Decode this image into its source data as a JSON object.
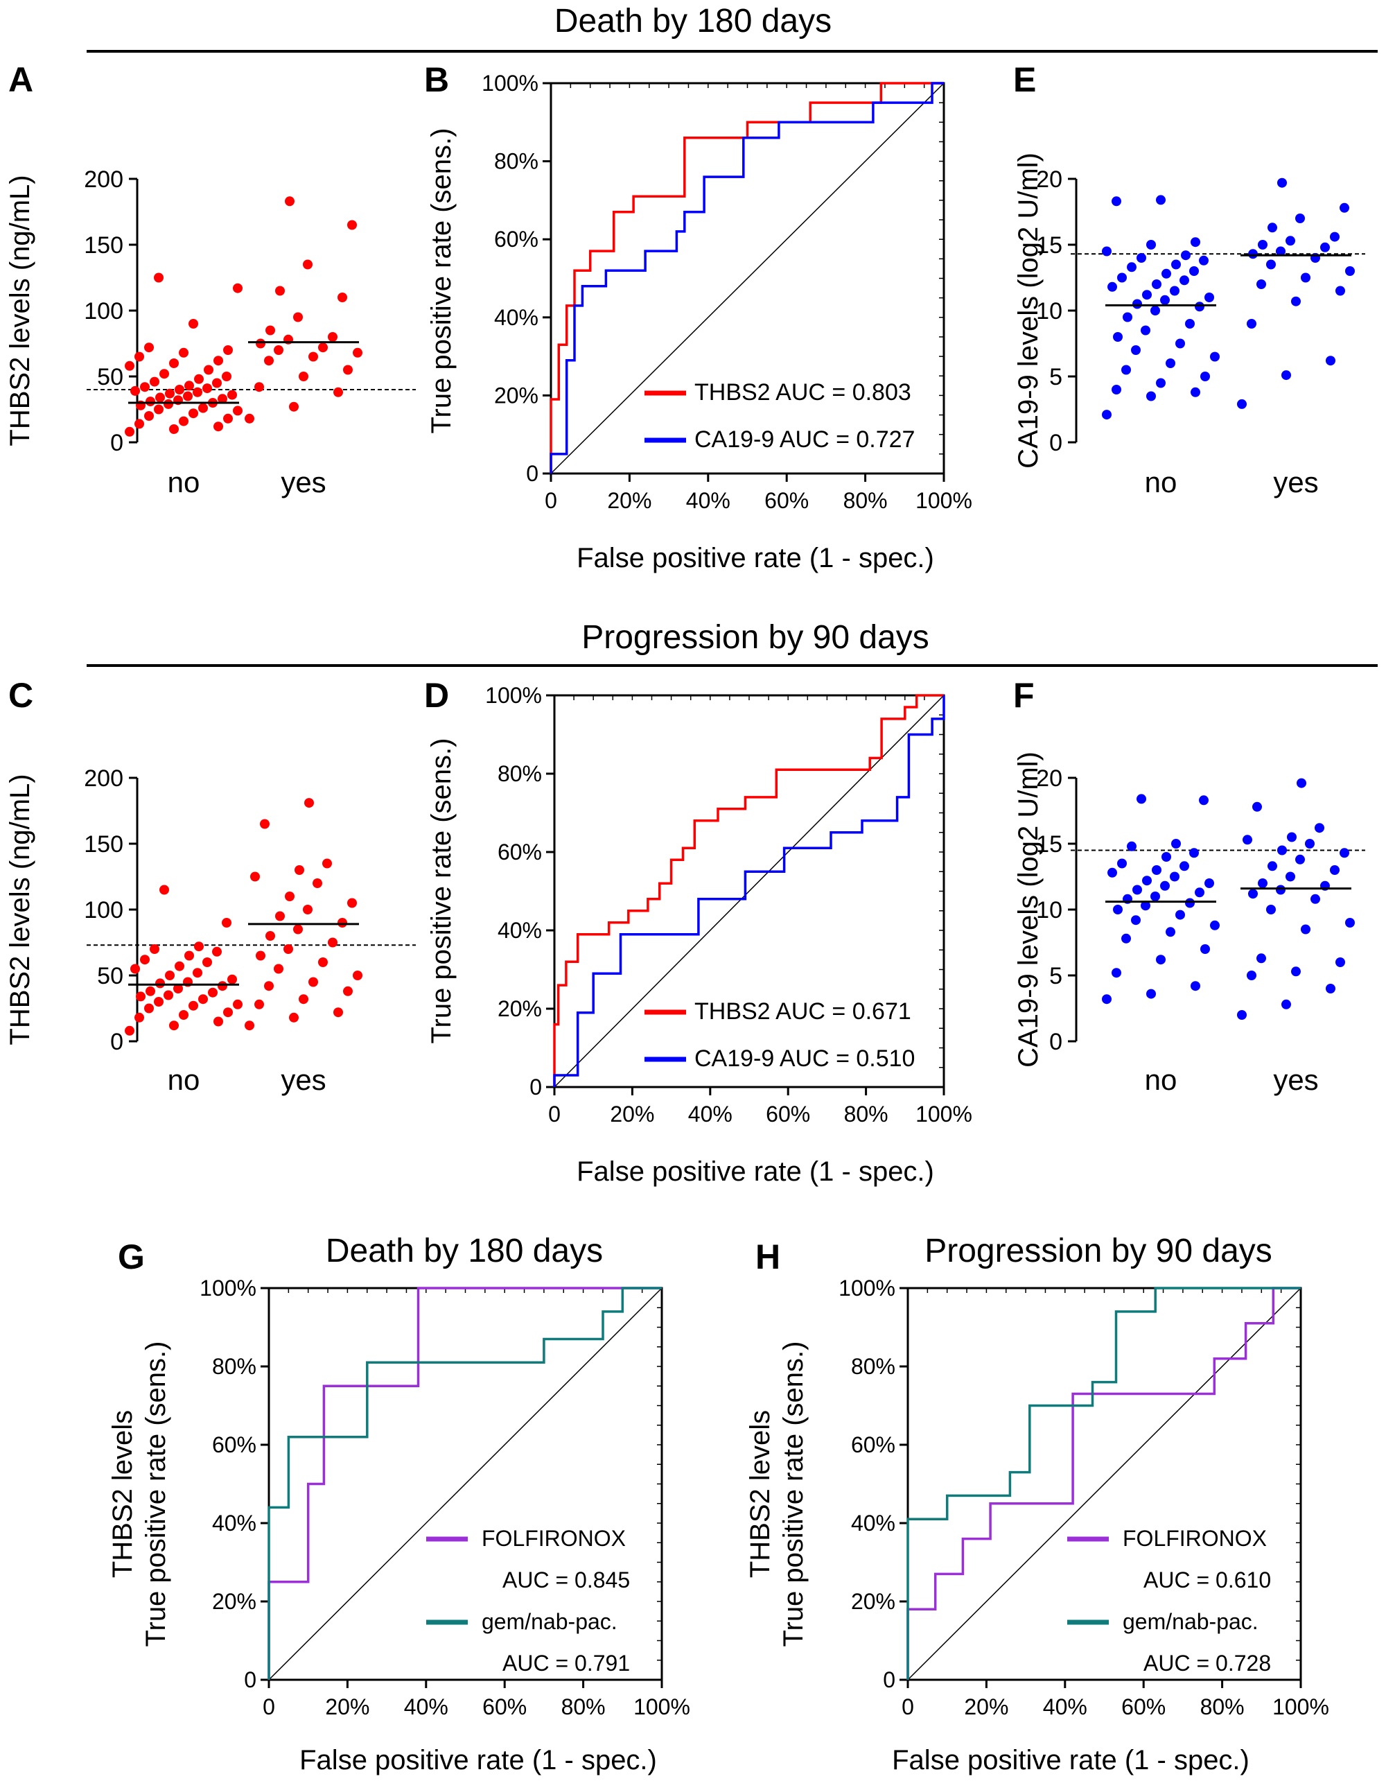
{
  "sections": [
    {
      "title": "Death by 180 days"
    },
    {
      "title": "Progression by 90 days"
    }
  ],
  "colors": {
    "red": "#ff0000",
    "blue": "#0000ff",
    "purple": "#9b30d9",
    "teal": "#0f7b7b"
  },
  "chart_data": [
    {
      "id": "A",
      "type": "scatter",
      "panel_label": "A",
      "ylabel": "THBS2 levels (ng/mL)",
      "categories": [
        "no",
        "yes"
      ],
      "ylim": [
        0,
        200
      ],
      "yticks": [
        0,
        50,
        100,
        150,
        200
      ],
      "point_color": "#ff0000",
      "cutoff": 40,
      "medians": [
        30,
        76
      ],
      "groups": [
        [
          8,
          10,
          12,
          14,
          16,
          18,
          20,
          22,
          24,
          25,
          26,
          28,
          29,
          30,
          31,
          32,
          33,
          34,
          35,
          36,
          37,
          38,
          39,
          40,
          41,
          42,
          43,
          45,
          46,
          48,
          50,
          52,
          55,
          58,
          60,
          62,
          65,
          68,
          70,
          72,
          90,
          117,
          125
        ],
        [
          18,
          27,
          38,
          42,
          50,
          55,
          62,
          65,
          68,
          70,
          72,
          75,
          78,
          80,
          85,
          95,
          110,
          115,
          135,
          165,
          183
        ]
      ]
    },
    {
      "id": "B",
      "type": "line",
      "panel_label": "B",
      "xlabel": "False positive rate (1 - spec.)",
      "ylabel": "True positive rate (sens.)",
      "ticks": [
        "0",
        "20%",
        "40%",
        "60%",
        "80%",
        "100%"
      ],
      "series": [
        {
          "name": "THBS2",
          "legend": "THBS2 AUC = 0.803",
          "color": "#ff0000",
          "x": [
            0,
            0,
            0.02,
            0.02,
            0.04,
            0.04,
            0.06,
            0.06,
            0.1,
            0.1,
            0.16,
            0.16,
            0.21,
            0.21,
            0.34,
            0.34,
            0.5,
            0.5,
            0.66,
            0.66,
            0.84,
            0.84,
            1
          ],
          "y": [
            0,
            0.19,
            0.19,
            0.33,
            0.33,
            0.43,
            0.43,
            0.52,
            0.52,
            0.57,
            0.57,
            0.67,
            0.67,
            0.71,
            0.71,
            0.86,
            0.86,
            0.9,
            0.9,
            0.95,
            0.95,
            1,
            1
          ]
        },
        {
          "name": "CA19-9",
          "legend": "CA19-9 AUC = 0.727",
          "color": "#0000ff",
          "x": [
            0,
            0,
            0.04,
            0.04,
            0.06,
            0.06,
            0.08,
            0.08,
            0.1,
            0.1,
            0.14,
            0.14,
            0.24,
            0.24,
            0.32,
            0.32,
            0.34,
            0.34,
            0.39,
            0.39,
            0.49,
            0.49,
            0.58,
            0.58,
            0.82,
            0.82,
            0.97,
            0.97,
            1
          ],
          "y": [
            0,
            0.05,
            0.05,
            0.29,
            0.29,
            0.43,
            0.43,
            0.48,
            0.48,
            0.48,
            0.48,
            0.52,
            0.52,
            0.57,
            0.57,
            0.62,
            0.62,
            0.67,
            0.67,
            0.76,
            0.76,
            0.86,
            0.86,
            0.9,
            0.9,
            0.95,
            0.95,
            1,
            1
          ]
        }
      ]
    },
    {
      "id": "E",
      "type": "scatter",
      "panel_label": "E",
      "ylabel": "CA19-9 levels (log2 U/ml)",
      "categories": [
        "no",
        "yes"
      ],
      "ylim": [
        0,
        20
      ],
      "yticks": [
        0,
        5,
        10,
        15,
        20
      ],
      "point_color": "#0000ff",
      "cutoff": 14.3,
      "medians": [
        10.4,
        14.2
      ],
      "groups": [
        [
          2.1,
          3.5,
          3.8,
          4.0,
          4.5,
          5.0,
          5.5,
          6.0,
          6.5,
          7.0,
          7.5,
          8.0,
          8.5,
          9.0,
          9.5,
          10.0,
          10.3,
          10.5,
          10.8,
          11.0,
          11.2,
          11.5,
          11.8,
          12.0,
          12.3,
          12.5,
          12.8,
          13.0,
          13.3,
          13.5,
          13.8,
          14.0,
          14.2,
          14.5,
          15.0,
          15.2,
          18.3,
          18.4
        ],
        [
          2.9,
          5.1,
          6.2,
          9.0,
          10.7,
          11.5,
          12.0,
          12.5,
          13.0,
          13.5,
          14.0,
          14.3,
          14.5,
          14.8,
          15.0,
          15.3,
          15.6,
          16.3,
          17.0,
          17.8,
          19.7
        ]
      ]
    },
    {
      "id": "C",
      "type": "scatter",
      "panel_label": "C",
      "ylabel": "THBS2 levels (ng/mL)",
      "categories": [
        "no",
        "yes"
      ],
      "ylim": [
        0,
        200
      ],
      "yticks": [
        0,
        50,
        100,
        150,
        200
      ],
      "point_color": "#ff0000",
      "cutoff": 73,
      "medians": [
        43,
        89
      ],
      "groups": [
        [
          8,
          12,
          15,
          18,
          20,
          22,
          25,
          27,
          28,
          30,
          32,
          34,
          35,
          37,
          38,
          40,
          42,
          44,
          45,
          47,
          50,
          52,
          55,
          57,
          60,
          62,
          65,
          68,
          70,
          72,
          90,
          115
        ],
        [
          12,
          18,
          22,
          28,
          32,
          38,
          42,
          45,
          50,
          55,
          60,
          65,
          70,
          75,
          80,
          85,
          90,
          95,
          100,
          105,
          110,
          120,
          125,
          130,
          135,
          165,
          181
        ]
      ]
    },
    {
      "id": "D",
      "type": "line",
      "panel_label": "D",
      "xlabel": "False positive rate (1 - spec.)",
      "ylabel": "True positive rate (sens.)",
      "ticks": [
        "0",
        "20%",
        "40%",
        "60%",
        "80%",
        "100%"
      ],
      "series": [
        {
          "name": "THBS2",
          "legend": "THBS2  AUC = 0.671",
          "color": "#ff0000",
          "x": [
            0,
            0,
            0.01,
            0.01,
            0.03,
            0.03,
            0.06,
            0.06,
            0.14,
            0.14,
            0.17,
            0.17,
            0.19,
            0.19,
            0.24,
            0.24,
            0.27,
            0.27,
            0.3,
            0.3,
            0.33,
            0.33,
            0.36,
            0.36,
            0.42,
            0.42,
            0.49,
            0.49,
            0.57,
            0.57,
            0.81,
            0.81,
            0.84,
            0.84,
            0.9,
            0.9,
            0.93,
            0.93,
            1
          ],
          "y": [
            0,
            0.16,
            0.16,
            0.26,
            0.26,
            0.32,
            0.32,
            0.39,
            0.39,
            0.42,
            0.42,
            0.42,
            0.42,
            0.45,
            0.45,
            0.48,
            0.48,
            0.52,
            0.52,
            0.58,
            0.58,
            0.61,
            0.61,
            0.68,
            0.68,
            0.71,
            0.71,
            0.74,
            0.74,
            0.81,
            0.81,
            0.84,
            0.84,
            0.94,
            0.94,
            0.97,
            0.97,
            1,
            1
          ]
        },
        {
          "name": "CA19-9",
          "legend": "CA19-9 AUC = 0.510",
          "color": "#0000ff",
          "x": [
            0,
            0,
            0.06,
            0.06,
            0.1,
            0.1,
            0.17,
            0.17,
            0.23,
            0.23,
            0.37,
            0.37,
            0.49,
            0.49,
            0.59,
            0.59,
            0.71,
            0.71,
            0.79,
            0.79,
            0.88,
            0.88,
            0.91,
            0.91,
            0.95,
            0.95,
            0.97,
            0.97,
            1,
            1
          ],
          "y": [
            0,
            0.03,
            0.03,
            0.19,
            0.19,
            0.29,
            0.29,
            0.39,
            0.39,
            0.39,
            0.39,
            0.48,
            0.48,
            0.55,
            0.55,
            0.61,
            0.61,
            0.65,
            0.65,
            0.68,
            0.68,
            0.74,
            0.74,
            0.9,
            0.9,
            0.9,
            0.9,
            0.94,
            0.94,
            1
          ]
        }
      ]
    },
    {
      "id": "F",
      "type": "scatter",
      "panel_label": "F",
      "ylabel": "CA19-9 levels (log2 U/ml)",
      "categories": [
        "no",
        "yes"
      ],
      "ylim": [
        0,
        20
      ],
      "yticks": [
        0,
        5,
        10,
        15,
        20
      ],
      "point_color": "#0000ff",
      "cutoff": 14.5,
      "medians": [
        10.6,
        11.6
      ],
      "groups": [
        [
          3.2,
          3.6,
          4.2,
          5.2,
          6.2,
          7.0,
          7.8,
          8.3,
          8.8,
          9.2,
          9.6,
          10.0,
          10.3,
          10.5,
          10.8,
          11.0,
          11.3,
          11.5,
          11.8,
          12.0,
          12.2,
          12.5,
          12.8,
          13.0,
          13.3,
          13.5,
          14.0,
          14.3,
          14.8,
          15.0,
          18.3,
          18.4
        ],
        [
          2.0,
          2.8,
          4.0,
          5.0,
          5.3,
          6.0,
          6.3,
          8.5,
          9.0,
          10.0,
          10.8,
          11.2,
          11.5,
          11.8,
          12.0,
          12.5,
          13.0,
          13.3,
          13.8,
          14.3,
          14.5,
          15.0,
          15.3,
          15.5,
          16.2,
          17.8,
          19.6
        ]
      ]
    },
    {
      "id": "G",
      "type": "line",
      "panel_label": "G",
      "title": "Death by 180 days",
      "xlabel": "False positive rate (1 - spec.)",
      "ylabel": "True positive rate (sens.)",
      "ylabel2": "THBS2 levels",
      "ticks": [
        "0",
        "20%",
        "40%",
        "60%",
        "80%",
        "100%"
      ],
      "series": [
        {
          "name": "FOLFIRONOX",
          "legend": "FOLFIRONOX",
          "auc": "AUC = 0.845",
          "color": "#9b30d9",
          "x": [
            0,
            0,
            0.1,
            0.1,
            0.14,
            0.14,
            0.38,
            0.38,
            1
          ],
          "y": [
            0,
            0.25,
            0.25,
            0.5,
            0.5,
            0.75,
            0.75,
            1,
            1
          ]
        },
        {
          "name": "gem/nab-pac.",
          "legend": "gem/nab-pac.",
          "auc": "AUC = 0.791",
          "color": "#0f7b7b",
          "x": [
            0,
            0,
            0.05,
            0.05,
            0.25,
            0.25,
            0.7,
            0.7,
            0.85,
            0.85,
            0.9,
            0.9,
            1
          ],
          "y": [
            0,
            0.44,
            0.44,
            0.62,
            0.62,
            0.81,
            0.81,
            0.87,
            0.87,
            0.94,
            0.94,
            1,
            1
          ]
        }
      ]
    },
    {
      "id": "H",
      "type": "line",
      "panel_label": "H",
      "title": "Progression by 90 days",
      "xlabel": "False positive rate (1 - spec.)",
      "ylabel": "True positive rate (sens.)",
      "ylabel2": "THBS2 levels",
      "ticks": [
        "0",
        "20%",
        "40%",
        "60%",
        "80%",
        "100%"
      ],
      "series": [
        {
          "name": "FOLFIRONOX",
          "legend": "FOLFIRONOX",
          "auc": "AUC = 0.610",
          "color": "#9b30d9",
          "x": [
            0,
            0,
            0.07,
            0.07,
            0.14,
            0.14,
            0.21,
            0.21,
            0.42,
            0.42,
            0.78,
            0.78,
            0.86,
            0.86,
            0.93,
            0.93,
            1
          ],
          "y": [
            0,
            0.18,
            0.18,
            0.27,
            0.27,
            0.36,
            0.36,
            0.45,
            0.45,
            0.73,
            0.73,
            0.82,
            0.82,
            0.91,
            0.91,
            1,
            1
          ]
        },
        {
          "name": "gem/nab-pac.",
          "legend": "gem/nab-pac.",
          "auc": "AUC = 0.728",
          "color": "#0f7b7b",
          "x": [
            0,
            0,
            0.1,
            0.1,
            0.26,
            0.26,
            0.31,
            0.31,
            0.47,
            0.47,
            0.53,
            0.53,
            0.63,
            0.63,
            0.9,
            0.9,
            1
          ],
          "y": [
            0,
            0.41,
            0.41,
            0.47,
            0.47,
            0.53,
            0.53,
            0.7,
            0.7,
            0.76,
            0.76,
            0.94,
            0.94,
            1,
            1,
            1,
            1
          ]
        }
      ]
    }
  ]
}
